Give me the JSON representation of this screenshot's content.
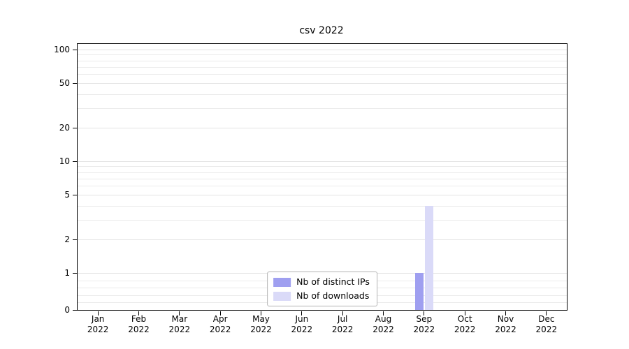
{
  "chart_data": {
    "type": "bar",
    "title": "csv 2022",
    "year_label": "2022",
    "categories": [
      "Jan",
      "Feb",
      "Mar",
      "Apr",
      "May",
      "Jun",
      "Jul",
      "Aug",
      "Sep",
      "Oct",
      "Nov",
      "Dec"
    ],
    "series": [
      {
        "name": "Nb of distinct IPs",
        "color": "#9f9ff0",
        "values": [
          0,
          0,
          0,
          0,
          0,
          0,
          0,
          0,
          1,
          0,
          0,
          0
        ]
      },
      {
        "name": "Nb of downloads",
        "color": "#dadaf8",
        "values": [
          0,
          0,
          0,
          0,
          0,
          0,
          0,
          0,
          4,
          0,
          0,
          0
        ]
      }
    ],
    "yticks": [
      0,
      1,
      2,
      5,
      10,
      20,
      50,
      100
    ],
    "yscale": "symlog",
    "ylim": [
      0,
      112
    ],
    "grid": "horizontal-minor-on",
    "legend_position": "lower center",
    "axis_color": "#000000",
    "grid_color": "#ebebeb"
  }
}
